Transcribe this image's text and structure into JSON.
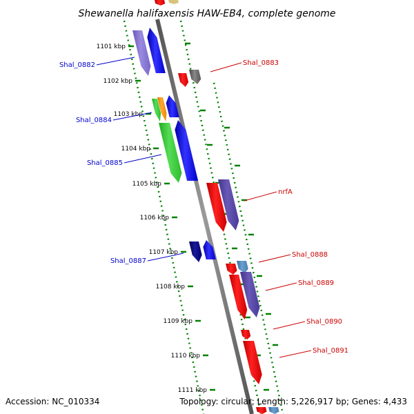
{
  "title": "Shewanella halifaxensis HAW-EB4, complete genome",
  "footer": {
    "accession": "Accession: NC_010334",
    "topology": "Topology: circular; Length: 5,226,917 bp; Genes: 4,433"
  },
  "ticks": [
    {
      "label": "1101 kbp"
    },
    {
      "label": "1102 kbp"
    },
    {
      "label": "1103 kbp"
    },
    {
      "label": "1104 kbp"
    },
    {
      "label": "1105 kbp"
    },
    {
      "label": "1106 kbp"
    },
    {
      "label": "1107 kbp"
    },
    {
      "label": "1108 kbp"
    },
    {
      "label": "1109 kbp"
    },
    {
      "label": "1110 kbp"
    },
    {
      "label": "1111 kbp"
    }
  ],
  "gene_labels": {
    "minus_strand": [
      "Shal_0882",
      "Shal_0884",
      "Shal_0885",
      "Shal_0887"
    ],
    "plus_strand": [
      "Shal_0883",
      "nrfA",
      "Shal_0888",
      "Shal_0889",
      "Shal_0890",
      "Shal_0891"
    ]
  },
  "colors": {
    "minus_label": "#0000cc",
    "plus_label": "#cc0000",
    "backbone": "#808080",
    "tick_dots": "#008000",
    "gene_blue": "#0000ff",
    "gene_red": "#ff0000",
    "gene_purple": "#5a4aa0",
    "gene_lavender": "#8a7ad0",
    "gene_green": "#33cc33",
    "gene_orange": "#ff9900",
    "gene_gray": "#666666",
    "gene_navy": "#000080",
    "gene_steelblue": "#4682b4"
  }
}
